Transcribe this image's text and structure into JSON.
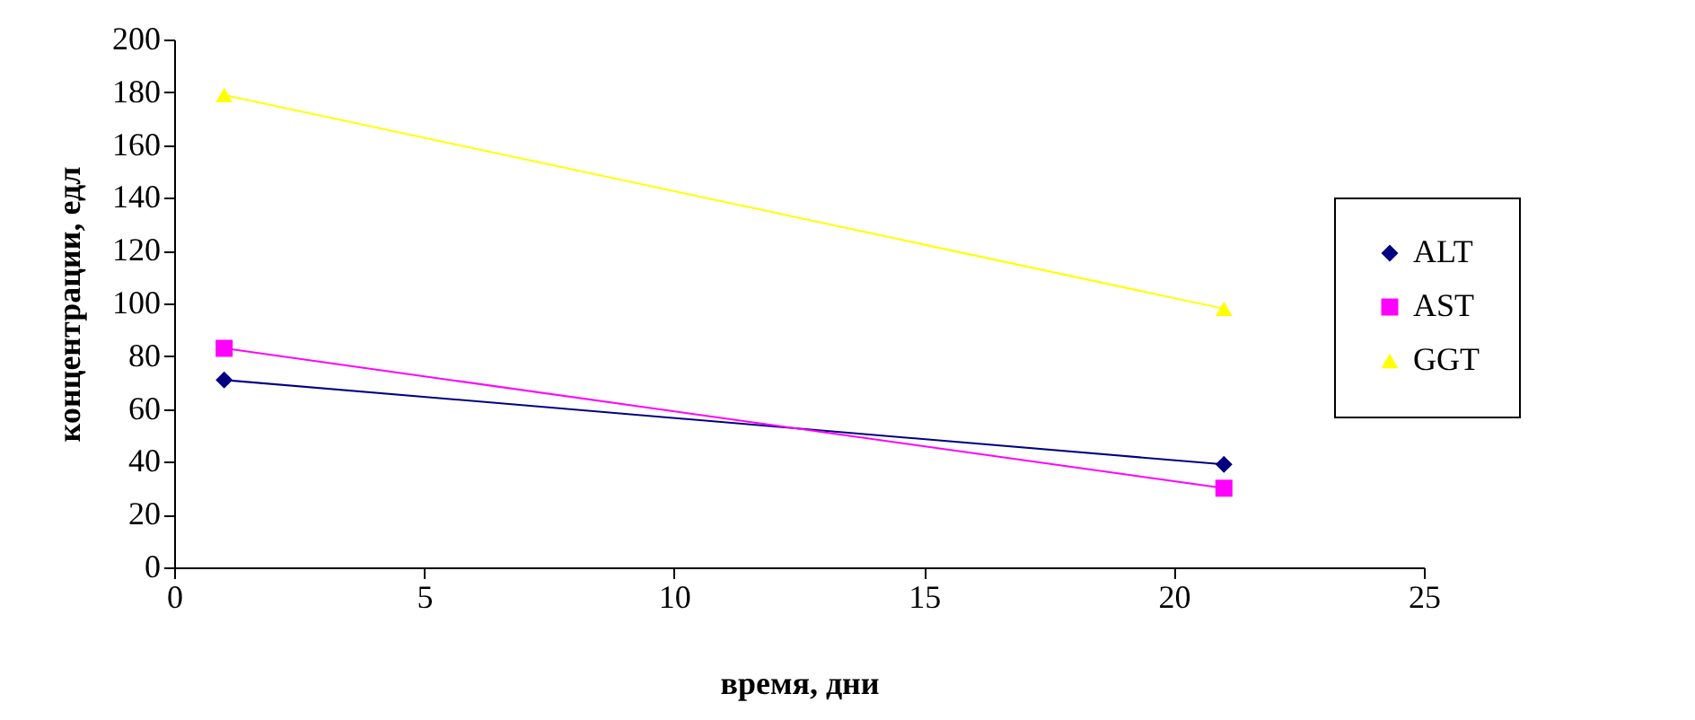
{
  "chart_data": {
    "type": "line",
    "xlabel": "время, дни",
    "ylabel": "концентрации, едл",
    "x": [
      1,
      21
    ],
    "xlim": [
      0,
      25
    ],
    "xticks": [
      0,
      5,
      10,
      15,
      20,
      25
    ],
    "ylim": [
      0,
      200
    ],
    "yticks": [
      0,
      20,
      40,
      60,
      80,
      100,
      120,
      140,
      160,
      180,
      200
    ],
    "grid": false,
    "legend": "right",
    "line_style": "solid",
    "series": [
      {
        "name": "ALT",
        "color": "#000080",
        "marker": "diamond",
        "values": [
          71,
          39
        ]
      },
      {
        "name": "AST",
        "color": "#ff00ff",
        "marker": "square",
        "values": [
          83,
          30
        ]
      },
      {
        "name": "GGT",
        "color": "#ffff00",
        "marker": "triangle",
        "values": [
          179,
          98
        ]
      }
    ]
  }
}
